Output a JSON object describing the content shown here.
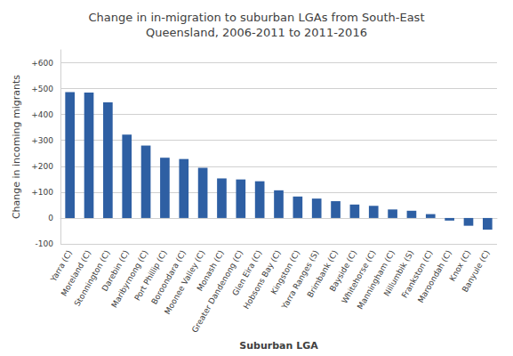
{
  "chart_data": {
    "type": "bar",
    "title": "Change in in-migration to suburban LGAs from South-East\nQueensland, 2006-2011 to 2011-2016",
    "xlabel": "Suburban LGA",
    "ylabel": "Change in incoming migrants",
    "categories": [
      "Yarra (C)",
      "Moreland (C)",
      "Stonnington (C)",
      "Darebin (C)",
      "Maribyrnong (C)",
      "Port Phillip (C)",
      "Boroondara (C)",
      "Moonee Valley (C)",
      "Monash (C)",
      "Greater Dandenong (C)",
      "Glen Eira (C)",
      "Hobsons Bay (C)",
      "Kingston (C)",
      "Yarra Ranges (S)",
      "Brimbank (C)",
      "Bayside (C)",
      "Whitehorse (C)",
      "Manningham (C)",
      "Nillumbik (S)",
      "Frankston (C)",
      "Maroondah (C)",
      "Knox (C)",
      "Banyule (C)"
    ],
    "values": [
      487,
      485,
      447,
      322,
      280,
      233,
      228,
      194,
      153,
      149,
      142,
      107,
      83,
      75,
      65,
      52,
      47,
      33,
      28,
      15,
      -10,
      -30,
      -45
    ],
    "color": "#2E5FA3",
    "ylim": [
      -100,
      650
    ],
    "yticks": [
      -100,
      0,
      {
        "value": 100,
        "label": "+100"
      },
      {
        "value": 200,
        "label": "+200"
      },
      {
        "value": 300,
        "label": "+300"
      },
      {
        "value": 400,
        "label": "+400"
      },
      {
        "value": 500,
        "label": "+500"
      },
      {
        "value": 600,
        "label": "+600"
      }
    ],
    "grid": true
  }
}
